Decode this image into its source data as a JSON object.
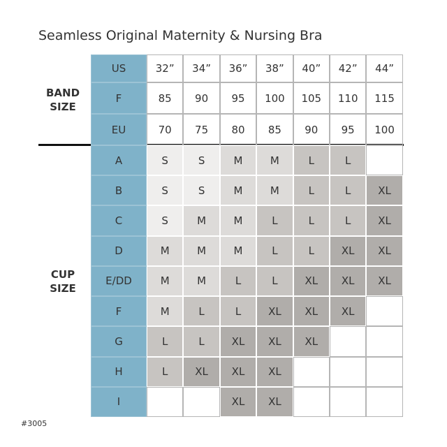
{
  "title": "Seamless Original Maternity & Nursing Bra",
  "band_size": {
    "label": "BAND SIZE",
    "rows": [
      {
        "name": "US",
        "values": [
          "32”",
          "34”",
          "36”",
          "38”",
          "40”",
          "42”",
          "44”"
        ]
      },
      {
        "name": "F",
        "values": [
          "85",
          "90",
          "95",
          "100",
          "105",
          "110",
          "115"
        ]
      },
      {
        "name": "EU",
        "values": [
          "70",
          "75",
          "80",
          "85",
          "90",
          "95",
          "100"
        ]
      }
    ]
  },
  "cup_size": {
    "label": "CUP SIZE",
    "rows": [
      {
        "name": "A",
        "values": [
          "S",
          "S",
          "M",
          "M",
          "L",
          "L",
          null
        ]
      },
      {
        "name": "B",
        "values": [
          "S",
          "S",
          "M",
          "M",
          "L",
          "L",
          "XL"
        ]
      },
      {
        "name": "C",
        "values": [
          "S",
          "M",
          "M",
          "L",
          "L",
          "L",
          "XL"
        ]
      },
      {
        "name": "D",
        "values": [
          "M",
          "M",
          "M",
          "L",
          "L",
          "XL",
          "XL"
        ]
      },
      {
        "name": "E/DD",
        "values": [
          "M",
          "M",
          "L",
          "L",
          "XL",
          "XL",
          "XL"
        ]
      },
      {
        "name": "F",
        "values": [
          "M",
          "L",
          "L",
          "XL",
          "XL",
          "XL",
          null
        ]
      },
      {
        "name": "G",
        "values": [
          "L",
          "L",
          "XL",
          "XL",
          "XL",
          null,
          null
        ]
      },
      {
        "name": "H",
        "values": [
          "L",
          "XL",
          "XL",
          "XL",
          null,
          null,
          null
        ]
      },
      {
        "name": "I",
        "values": [
          null,
          null,
          "XL",
          "XL",
          null,
          null,
          null
        ]
      }
    ]
  },
  "size_colors": {
    "S": "#efeeed",
    "M": "#dddbd9",
    "L": "#c7c4c1",
    "XL": "#b0adaa"
  },
  "footer": "#3005"
}
